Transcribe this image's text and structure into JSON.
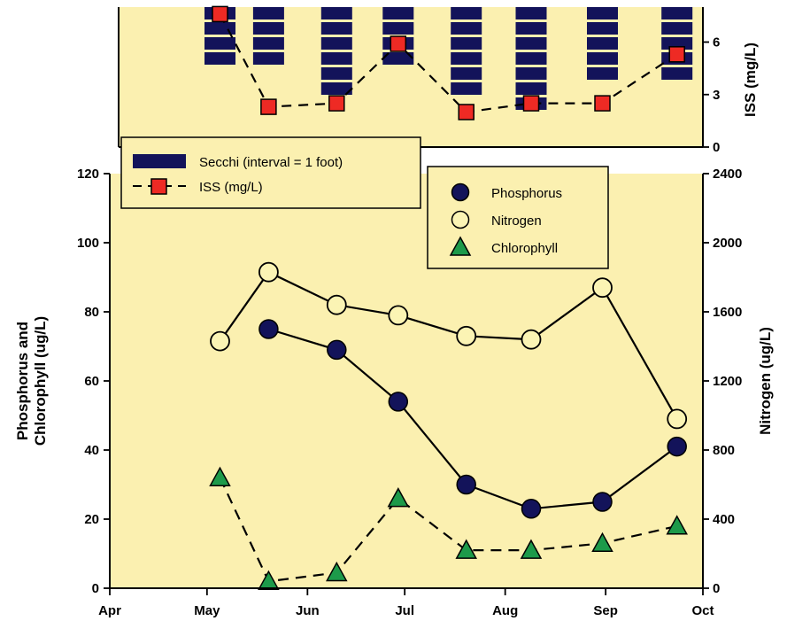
{
  "chart_data": [
    {
      "type": "bar",
      "panel": "top",
      "series": [
        {
          "name": "Secchi (interval = 1 foot)",
          "x": [
            "2023-05-05",
            "2023-05-20",
            "2023-06-10",
            "2023-06-29",
            "2023-07-20",
            "2023-08-09",
            "2023-08-31",
            "2023-09-23"
          ],
          "values": [
            4,
            4,
            6,
            4,
            6,
            7,
            5,
            5
          ]
        },
        {
          "name": "ISS (mg/L)",
          "x": [
            "2023-05-05",
            "2023-05-20",
            "2023-06-10",
            "2023-06-29",
            "2023-07-20",
            "2023-08-09",
            "2023-08-31",
            "2023-09-23"
          ],
          "values": [
            7.6,
            2.3,
            2.5,
            5.9,
            2.0,
            2.5,
            2.5,
            5.3
          ]
        }
      ],
      "ylabel_right": "ISS (mg/L)",
      "yticks_right": [
        "0",
        "3",
        "6"
      ],
      "ylim_right": [
        0,
        8
      ],
      "xlim": [
        "2023-04-01",
        "2023-10-01"
      ],
      "legend": "top-left"
    },
    {
      "type": "line",
      "panel": "bottom",
      "series": [
        {
          "name": "Phosphorus",
          "axis": "left",
          "x": [
            "2023-05-20",
            "2023-06-10",
            "2023-06-29",
            "2023-07-20",
            "2023-08-09",
            "2023-08-31",
            "2023-09-23"
          ],
          "values": [
            75,
            69,
            54,
            30,
            23,
            25,
            41
          ]
        },
        {
          "name": "Nitrogen",
          "axis": "right",
          "x": [
            "2023-05-05",
            "2023-05-20",
            "2023-06-10",
            "2023-06-29",
            "2023-07-20",
            "2023-08-09",
            "2023-08-31",
            "2023-09-23"
          ],
          "values": [
            1430,
            1830,
            1640,
            1580,
            1460,
            1440,
            1740,
            980
          ]
        },
        {
          "name": "Chlorophyll",
          "axis": "left",
          "x": [
            "2023-05-05",
            "2023-05-20",
            "2023-06-10",
            "2023-06-29",
            "2023-07-20",
            "2023-08-09",
            "2023-08-31",
            "2023-09-23"
          ],
          "values": [
            32,
            2,
            4.5,
            26,
            11,
            11,
            13,
            18
          ]
        }
      ],
      "xlim": [
        "2023-04-01",
        "2023-10-01"
      ],
      "xticks": [
        {
          "x": "2023-04-01",
          "label": "Apr"
        },
        {
          "x": "2023-05-01",
          "label": "May"
        },
        {
          "x": "2023-06-01",
          "label": "Jun"
        },
        {
          "x": "2023-07-01",
          "label": "Jul"
        },
        {
          "x": "2023-08-01",
          "label": "Aug"
        },
        {
          "x": "2023-09-01",
          "label": "Sep"
        },
        {
          "x": "2023-10-01",
          "label": "Oct"
        }
      ],
      "ylim_left": [
        0,
        120
      ],
      "yticks_left": [
        "0",
        "20",
        "40",
        "60",
        "80",
        "100",
        "120"
      ],
      "ylabel_left_lines": [
        "Phosphorus and",
        "Chlorophyll (ug/L)"
      ],
      "ylim_right": [
        0,
        2400
      ],
      "yticks_right": [
        "0",
        "400",
        "800",
        "1200",
        "1600",
        "2000",
        "2400"
      ],
      "ylabel_right": "Nitrogen (ug/L)",
      "legend": "top-right",
      "grid": false
    }
  ],
  "colors": {
    "panel_bg": "#fbf0b0",
    "secchi_bar": "#13135a",
    "iss_marker": "#ee2a24",
    "phosphorus_marker": "#13135a",
    "nitrogen_marker": "#fbf4b4",
    "chlorophyll_marker": "#1d9a4a",
    "line": "#000000"
  }
}
